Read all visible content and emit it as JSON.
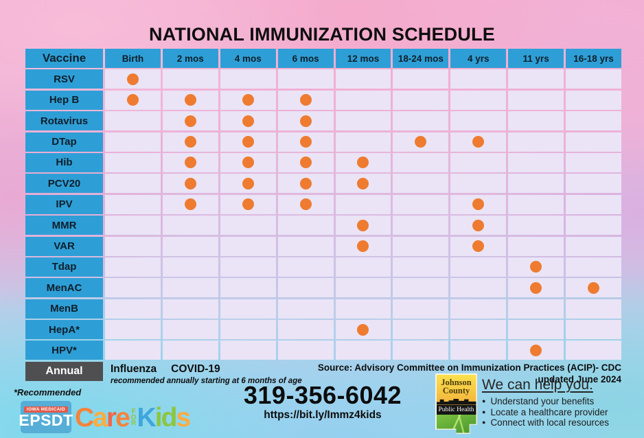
{
  "title": "NATIONAL IMMUNIZATION SCHEDULE",
  "colors": {
    "header_blue": "#2E9FD6",
    "cell_lavender": "#EAE4F6",
    "dot_orange": "#EE7B30",
    "annual_gray": "#4F4F51"
  },
  "chart_data": {
    "type": "table",
    "title": "NATIONAL IMMUNIZATION SCHEDULE",
    "columns": [
      "Vaccine",
      "Birth",
      "2 mos",
      "4 mos",
      "6 mos",
      "12 mos",
      "18-24 mos",
      "4 yrs",
      "11 yrs",
      "16-18 yrs"
    ],
    "rows": [
      {
        "vaccine": "RSV",
        "doses": [
          "Birth"
        ]
      },
      {
        "vaccine": "Hep B",
        "doses": [
          "Birth",
          "2 mos",
          "4 mos",
          "6 mos"
        ]
      },
      {
        "vaccine": "Rotavirus",
        "doses": [
          "2 mos",
          "4 mos",
          "6 mos"
        ]
      },
      {
        "vaccine": "DTap",
        "doses": [
          "2 mos",
          "4 mos",
          "6 mos",
          "18-24 mos",
          "4 yrs"
        ]
      },
      {
        "vaccine": "Hib",
        "doses": [
          "2 mos",
          "4 mos",
          "6 mos",
          "12 mos"
        ]
      },
      {
        "vaccine": "PCV20",
        "doses": [
          "2 mos",
          "4 mos",
          "6 mos",
          "12 mos"
        ]
      },
      {
        "vaccine": "IPV",
        "doses": [
          "2 mos",
          "4 mos",
          "6 mos",
          "4 yrs"
        ]
      },
      {
        "vaccine": "MMR",
        "doses": [
          "12 mos",
          "4 yrs"
        ]
      },
      {
        "vaccine": "VAR",
        "doses": [
          "12 mos",
          "4 yrs"
        ]
      },
      {
        "vaccine": "Tdap",
        "doses": [
          "11 yrs"
        ]
      },
      {
        "vaccine": "MenAC",
        "doses": [
          "11 yrs",
          "16-18 yrs"
        ]
      },
      {
        "vaccine": "MenB",
        "doses": []
      },
      {
        "vaccine": "HepA*",
        "doses": [
          "12 mos"
        ]
      },
      {
        "vaccine": "HPV*",
        "doses": [
          "11 yrs"
        ]
      }
    ],
    "annual_row": {
      "label": "Annual",
      "vaccines": [
        "Influenza",
        "COVID-19"
      ],
      "note": "recommended annually starting at 6 months of age"
    }
  },
  "footer": {
    "source_line1": "Source: Advisory Committee on Immunization Practices (ACIP)- CDC",
    "source_line2": "updated June 2024",
    "phone": "319-356-6042",
    "url": "https://bit.ly/Immz4kids",
    "recommended_note": "*Recommended",
    "help": {
      "heading": "We can help you:",
      "bullets": [
        "Understand your benefits",
        "Locate a healthcare provider",
        "Connect with local resources"
      ]
    },
    "epsdt_logo": {
      "program": "IOWA MEDICAID",
      "acronym": "EPSDT",
      "word1": "Care",
      "word2": "FOR",
      "word3": "Kids"
    },
    "jc_logo": {
      "line1": "Johnson",
      "line2": "County",
      "line3": "Public Health"
    }
  }
}
